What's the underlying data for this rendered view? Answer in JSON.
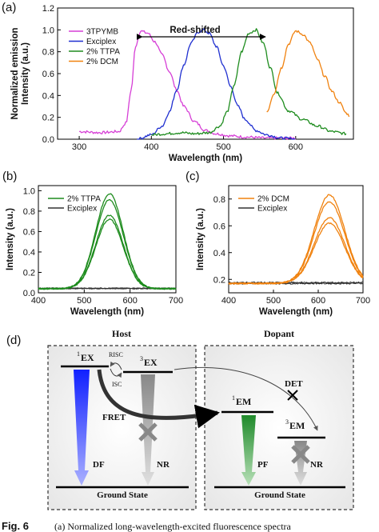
{
  "chart_data": [
    {
      "panel": "(a)",
      "type": "line",
      "xlabel": "Wavelength (nm)",
      "ylabel": "Normalized emission Intensity (a.u.)",
      "xlim": [
        270,
        680
      ],
      "ylim": [
        0,
        1.2
      ],
      "xticks": [
        300,
        400,
        500,
        600
      ],
      "yticks": [
        0.0,
        0.2,
        0.4,
        0.6,
        0.8,
        1.0,
        1.2
      ],
      "legend_position": "top-left",
      "annotation": "Red-shifted",
      "series": [
        {
          "name": "3TPYMB",
          "color": "#d63fd6",
          "x": [
            300,
            330,
            355,
            365,
            372,
            378,
            385,
            395,
            405,
            415,
            425,
            435,
            445,
            460,
            475,
            490,
            510,
            530,
            560,
            600
          ],
          "y": [
            0.07,
            0.06,
            0.07,
            0.15,
            0.45,
            0.85,
            0.99,
            0.97,
            0.89,
            0.77,
            0.62,
            0.45,
            0.3,
            0.16,
            0.08,
            0.05,
            0.03,
            0.02,
            0.01,
            0.01
          ]
        },
        {
          "name": "Exciplex",
          "color": "#1f2fd0",
          "x": [
            380,
            400,
            415,
            425,
            435,
            445,
            455,
            465,
            472,
            480,
            490,
            500,
            510,
            520,
            530,
            545,
            560,
            580,
            600
          ],
          "y": [
            0.0,
            0.04,
            0.12,
            0.25,
            0.45,
            0.68,
            0.88,
            0.98,
            1.0,
            0.97,
            0.85,
            0.67,
            0.48,
            0.3,
            0.18,
            0.08,
            0.04,
            0.01,
            0.0
          ]
        },
        {
          "name": "2% TTPA",
          "color": "#1e8c1e",
          "x": [
            400,
            420,
            440,
            460,
            480,
            495,
            505,
            515,
            525,
            535,
            545,
            555,
            565,
            575,
            590,
            610,
            630,
            650,
            670
          ],
          "y": [
            0.04,
            0.05,
            0.06,
            0.05,
            0.06,
            0.12,
            0.25,
            0.5,
            0.8,
            0.97,
            1.0,
            0.88,
            0.65,
            0.42,
            0.26,
            0.18,
            0.12,
            0.07,
            0.05
          ]
        },
        {
          "name": "2% DCM",
          "color": "#f0820f",
          "x": [
            560,
            570,
            580,
            590,
            600,
            610,
            620,
            630,
            640,
            650,
            660,
            670,
            675
          ],
          "y": [
            0.25,
            0.42,
            0.65,
            0.87,
            0.99,
            0.96,
            0.88,
            0.73,
            0.58,
            0.44,
            0.34,
            0.24,
            0.21
          ]
        }
      ]
    },
    {
      "panel": "(b)",
      "type": "line",
      "xlabel": "Wavelength (nm)",
      "ylabel": "Intensity (a.u.)",
      "xlim": [
        400,
        700
      ],
      "ylim": [
        0,
        1.05
      ],
      "xticks": [
        400,
        500,
        600,
        700
      ],
      "yticks": [
        0.0,
        0.2,
        0.4,
        0.6,
        0.8,
        1.0
      ],
      "legend_position": "top-left",
      "series": [
        {
          "name": "2% TTPA",
          "color": "#1e8c1e",
          "peak_x": 555,
          "peaks": [
            0.97,
            0.91,
            0.76,
            0.72
          ]
        },
        {
          "name": "Exciplex",
          "color": "#333333",
          "level": 0.04
        }
      ]
    },
    {
      "panel": "(c)",
      "type": "line",
      "xlabel": "Wavelength (nm)",
      "ylabel": "Intensity (a.u.)",
      "xlim": [
        400,
        700
      ],
      "ylim": [
        0.1,
        0.9
      ],
      "xticks": [
        400,
        500,
        600,
        700
      ],
      "yticks": [
        0.2,
        0.4,
        0.6,
        0.8
      ],
      "legend_position": "top-left",
      "series": [
        {
          "name": "2% DCM",
          "color": "#f0820f",
          "peak_x": 625,
          "peaks": [
            0.83,
            0.78,
            0.66,
            0.62
          ]
        },
        {
          "name": "Exciplex",
          "color": "#333333",
          "level": 0.17
        }
      ]
    }
  ],
  "labels": {
    "panel_d": "(d)",
    "host": "Host",
    "dopant": "Dopant",
    "ex1": "EX",
    "ex3": "EX",
    "em1": "EM",
    "em3": "EM",
    "sup1": "1",
    "sup3": "3",
    "risc": "RISC",
    "isc": "ISC",
    "fret": "FRET",
    "det": "DET",
    "df": "DF",
    "nr": "NR",
    "pf": "PF",
    "ground": "Ground State"
  },
  "caption": {
    "label": "Fig. 6",
    "text": "(a) Normalized long-wavelength-excited fluorescence spectra"
  }
}
